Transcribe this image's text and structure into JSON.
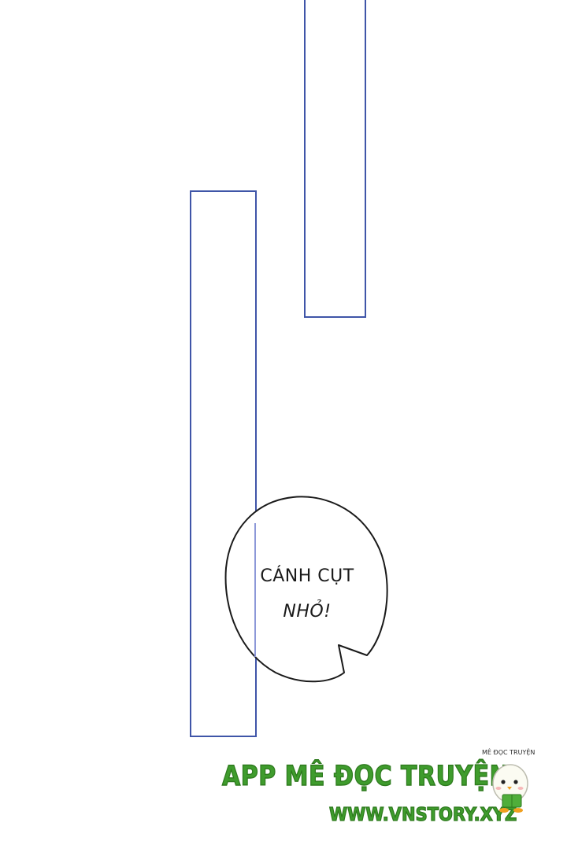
{
  "speech_bubble": {
    "line_1": "CÁNH CỤT",
    "line_2": "NHỎ!"
  },
  "watermark": {
    "app_name": "APP MÊ ĐỌC TRUYỆN",
    "url": "WWW.VNSTORY.XYZ",
    "small_label": "MÊ ĐỌC TRUYỆN",
    "mascot_icon": "bird-mascot-icon"
  },
  "colors": {
    "panel_border": "#3f55a8",
    "watermark_green": "#3f9c2d",
    "background": "#ffffff"
  }
}
